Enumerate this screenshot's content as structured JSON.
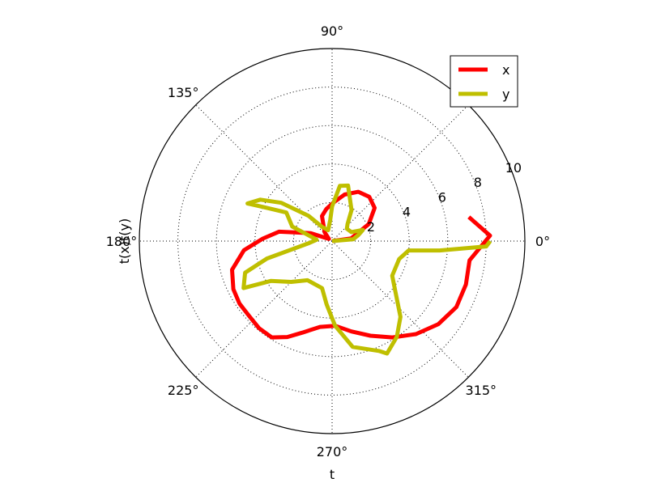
{
  "chart_data": {
    "type": "line",
    "projection": "polar",
    "xlabel": "t",
    "ylabel": "t(x)t(y)",
    "angle_ticks_deg": [
      0,
      45,
      90,
      135,
      180,
      225,
      270,
      315
    ],
    "angle_tick_labels": [
      "0°",
      "",
      "90°",
      "135°",
      "180°",
      "225°",
      "270°",
      "315°"
    ],
    "radial_ticks": [
      2,
      4,
      6,
      8,
      10
    ],
    "radial_tick_labels": [
      "2",
      "4",
      "6",
      "8",
      "10"
    ],
    "rlim": [
      0,
      10
    ],
    "radial_label_angle_deg": 22.5,
    "grid": true,
    "legend": {
      "position": "top-right",
      "entries": [
        "x",
        "y"
      ]
    },
    "series": [
      {
        "name": "x",
        "color": "#ff0000",
        "points": [
          [
            0,
            0
          ],
          [
            8,
            1.0
          ],
          [
            25,
            2.1
          ],
          [
            38,
            2.8
          ],
          [
            50,
            3.0
          ],
          [
            62,
            2.9
          ],
          [
            75,
            2.5
          ],
          [
            88,
            2.0
          ],
          [
            100,
            1.7
          ],
          [
            112,
            1.4
          ],
          [
            130,
            0.6
          ],
          [
            145,
            0.2
          ],
          [
            160,
            1.2
          ],
          [
            170,
            2.8
          ],
          [
            178,
            3.6
          ],
          [
            186,
            4.6
          ],
          [
            196,
            5.4
          ],
          [
            206,
            5.7
          ],
          [
            214,
            5.8
          ],
          [
            222,
            5.8
          ],
          [
            230,
            5.9
          ],
          [
            238,
            5.9
          ],
          [
            245,
            5.5
          ],
          [
            252,
            5.0
          ],
          [
            262,
            4.5
          ],
          [
            272,
            4.4
          ],
          [
            282,
            4.8
          ],
          [
            292,
            5.3
          ],
          [
            302,
            5.9
          ],
          [
            312,
            6.5
          ],
          [
            322,
            7.0
          ],
          [
            332,
            7.3
          ],
          [
            342,
            7.3
          ],
          [
            352,
            7.2
          ],
          [
            2,
            8.2
          ],
          [
            10,
            7.2
          ]
        ]
      },
      {
        "name": "y",
        "color": "#bfbf00",
        "points": [
          [
            0,
            0
          ],
          [
            5,
            1.1
          ],
          [
            13,
            1.4
          ],
          [
            20,
            1.7
          ],
          [
            25,
            1.1
          ],
          [
            40,
            1.0
          ],
          [
            48,
            1.2
          ],
          [
            58,
            1.9
          ],
          [
            74,
            3.0
          ],
          [
            82,
            2.9
          ],
          [
            90,
            1.8
          ],
          [
            95,
            1.1
          ],
          [
            110,
            0.6
          ],
          [
            125,
            0.9
          ],
          [
            133,
            1.8
          ],
          [
            143,
            3.3
          ],
          [
            150,
            4.3
          ],
          [
            156,
            4.8
          ],
          [
            153,
            3.8
          ],
          [
            148,
            2.8
          ],
          [
            160,
            2.2
          ],
          [
            175,
            0.8
          ],
          [
            185,
            1.2
          ],
          [
            195,
            3.5
          ],
          [
            200,
            4.8
          ],
          [
            208,
            5.2
          ],
          [
            213,
            3.8
          ],
          [
            225,
            3.0
          ],
          [
            238,
            2.4
          ],
          [
            258,
            2.5
          ],
          [
            265,
            3.3
          ],
          [
            272,
            4.4
          ],
          [
            281,
            5.6
          ],
          [
            293,
            6.2
          ],
          [
            296,
            6.5
          ],
          [
            304,
            6.0
          ],
          [
            312,
            5.3
          ],
          [
            330,
            3.6
          ],
          [
            345,
            3.6
          ],
          [
            353,
            4.0
          ],
          [
            355,
            5.6
          ],
          [
            358,
            8.0
          ],
          [
            0,
            8.2
          ]
        ]
      }
    ]
  }
}
